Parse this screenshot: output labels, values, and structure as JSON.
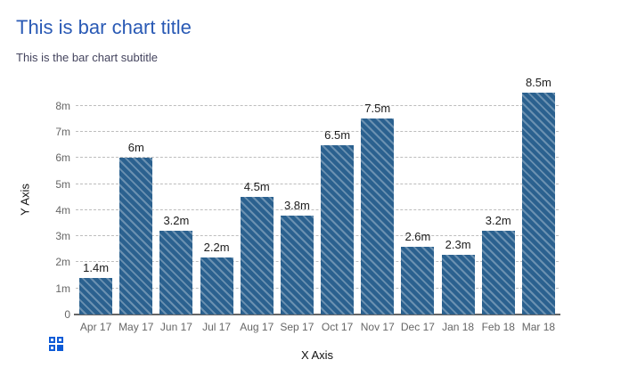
{
  "page": {
    "title": "This is bar chart title",
    "subtitle": "This is the bar chart subtitle"
  },
  "chart_data": {
    "type": "bar",
    "title": "This is bar chart title",
    "subtitle": "This is the bar chart subtitle",
    "xlabel": "X Axis",
    "ylabel": "Y Axis",
    "categories": [
      "Apr 17",
      "May 17",
      "Jun 17",
      "Jul 17",
      "Aug 17",
      "Sep 17",
      "Oct 17",
      "Nov 17",
      "Dec 17",
      "Jan 18",
      "Feb 18",
      "Mar 18"
    ],
    "values": [
      1.4,
      6,
      3.2,
      2.2,
      4.5,
      3.8,
      6.5,
      7.5,
      2.6,
      2.3,
      3.2,
      8.5
    ],
    "value_labels": [
      "1.4m",
      "6m",
      "3.2m",
      "2.2m",
      "4.5m",
      "3.8m",
      "6.5m",
      "7.5m",
      "2.6m",
      "2.3m",
      "3.2m",
      "8.5m"
    ],
    "y_ticks": [
      "0",
      "1m",
      "2m",
      "3m",
      "4m",
      "5m",
      "6m",
      "7m",
      "8m"
    ],
    "ylim": [
      0,
      8.8
    ],
    "grid": "horizontal-dashed",
    "legend": "none",
    "bar_color": "#2b618f",
    "bar_pattern": "diagonal-stripes"
  },
  "icons": {
    "grid_menu": "grid-menu-icon"
  },
  "colors": {
    "title": "#2a5ab5",
    "subtitle": "#44445e",
    "tick_text": "#666666",
    "value_text": "#1c1c1c",
    "axis_line": "#666666",
    "gridline": "#bdbdbd",
    "bar": "#2b618f",
    "icon_blue": "#0d5bd7"
  }
}
